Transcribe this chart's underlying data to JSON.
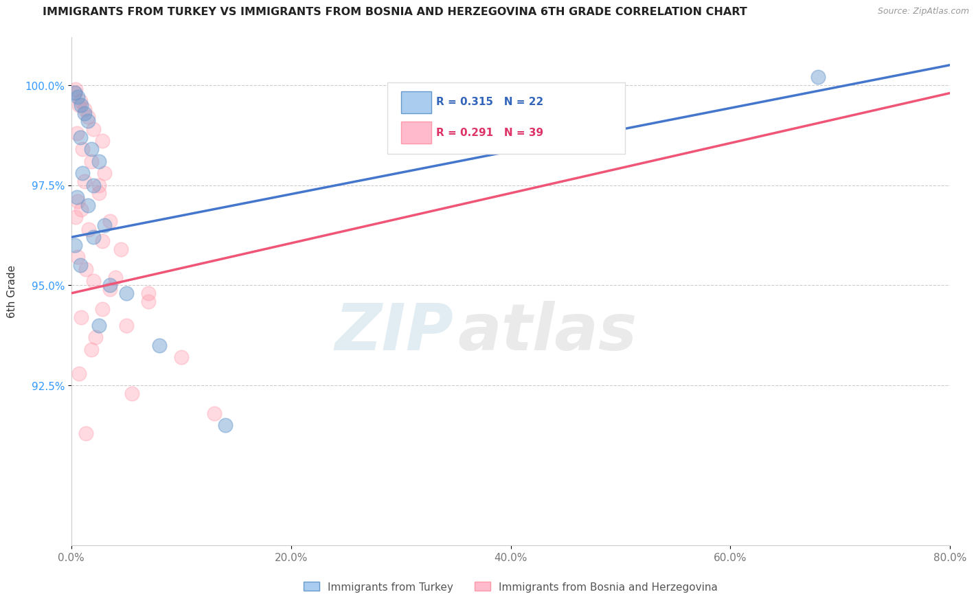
{
  "title": "IMMIGRANTS FROM TURKEY VS IMMIGRANTS FROM BOSNIA AND HERZEGOVINA 6TH GRADE CORRELATION CHART",
  "source": "Source: ZipAtlas.com",
  "xlabel_blue": "Immigrants from Turkey",
  "xlabel_pink": "Immigrants from Bosnia and Herzegovina",
  "ylabel": "6th Grade",
  "watermark_zip": "ZIP",
  "watermark_atlas": "atlas",
  "R_blue": 0.315,
  "N_blue": 22,
  "R_pink": 0.291,
  "N_pink": 39,
  "xlim": [
    0.0,
    80.0
  ],
  "ylim": [
    88.5,
    101.2
  ],
  "yticks": [
    92.5,
    95.0,
    97.5,
    100.0
  ],
  "xticks": [
    0.0,
    20.0,
    40.0,
    60.0,
    80.0
  ],
  "color_blue": "#6699CC",
  "color_pink": "#FF99AA",
  "line_blue": "#4477CC",
  "line_pink": "#EE5577",
  "blue_scatter": [
    [
      0.3,
      99.8
    ],
    [
      0.6,
      99.7
    ],
    [
      0.9,
      99.5
    ],
    [
      1.2,
      99.3
    ],
    [
      1.5,
      99.1
    ],
    [
      0.8,
      98.7
    ],
    [
      1.8,
      98.4
    ],
    [
      2.5,
      98.1
    ],
    [
      1.0,
      97.8
    ],
    [
      2.0,
      97.5
    ],
    [
      0.5,
      97.2
    ],
    [
      1.5,
      97.0
    ],
    [
      3.0,
      96.5
    ],
    [
      2.0,
      96.2
    ],
    [
      0.3,
      96.0
    ],
    [
      0.8,
      95.5
    ],
    [
      3.5,
      95.0
    ],
    [
      5.0,
      94.8
    ],
    [
      2.5,
      94.0
    ],
    [
      8.0,
      93.5
    ],
    [
      68.0,
      100.2
    ],
    [
      14.0,
      91.5
    ]
  ],
  "pink_scatter": [
    [
      0.4,
      99.9
    ],
    [
      0.8,
      99.6
    ],
    [
      1.2,
      99.4
    ],
    [
      0.3,
      99.8
    ],
    [
      0.7,
      99.5
    ],
    [
      1.5,
      99.2
    ],
    [
      2.0,
      98.9
    ],
    [
      2.8,
      98.6
    ],
    [
      0.5,
      98.8
    ],
    [
      1.0,
      98.4
    ],
    [
      1.8,
      98.1
    ],
    [
      3.0,
      97.8
    ],
    [
      1.2,
      97.6
    ],
    [
      2.5,
      97.3
    ],
    [
      0.6,
      97.1
    ],
    [
      0.9,
      96.9
    ],
    [
      3.5,
      96.6
    ],
    [
      0.4,
      96.7
    ],
    [
      1.6,
      96.4
    ],
    [
      2.8,
      96.1
    ],
    [
      4.5,
      95.9
    ],
    [
      0.6,
      95.7
    ],
    [
      1.3,
      95.4
    ],
    [
      2.0,
      95.1
    ],
    [
      7.0,
      94.6
    ],
    [
      2.8,
      94.4
    ],
    [
      0.9,
      94.2
    ],
    [
      5.0,
      94.0
    ],
    [
      2.2,
      93.7
    ],
    [
      10.0,
      93.2
    ],
    [
      0.7,
      92.8
    ],
    [
      5.5,
      92.3
    ],
    [
      13.0,
      91.8
    ],
    [
      1.3,
      91.3
    ],
    [
      7.0,
      94.8
    ],
    [
      4.0,
      95.2
    ],
    [
      3.5,
      94.9
    ],
    [
      1.8,
      93.4
    ],
    [
      2.5,
      97.5
    ]
  ],
  "blue_line": [
    [
      0.0,
      96.2
    ],
    [
      80.0,
      100.5
    ]
  ],
  "pink_line": [
    [
      0.0,
      94.8
    ],
    [
      80.0,
      99.8
    ]
  ]
}
